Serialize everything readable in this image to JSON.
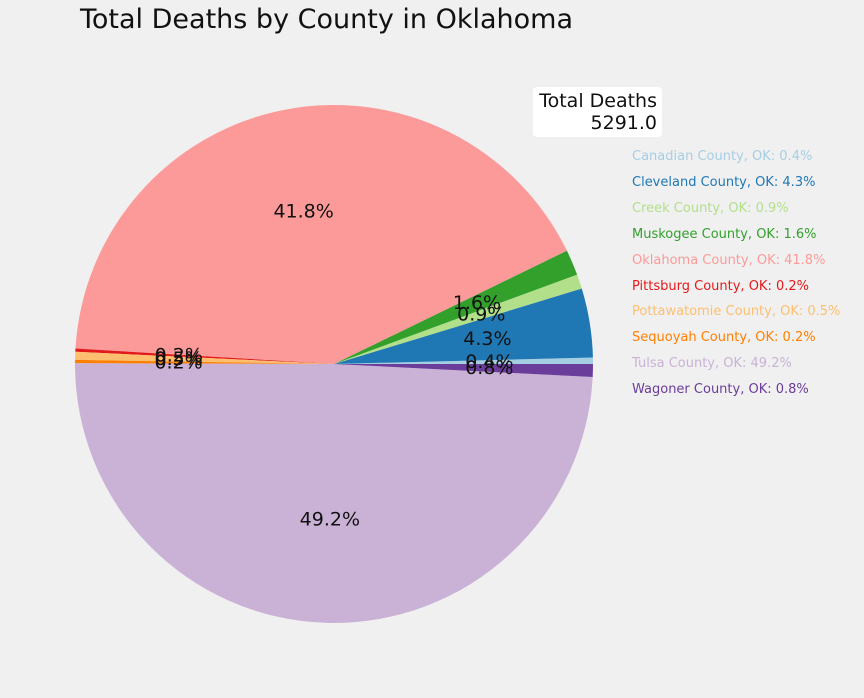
{
  "chart_data": {
    "type": "pie",
    "title": "Total Deaths by County in Oklahoma",
    "annotation": {
      "label": "Total Deaths",
      "value": "5291.0"
    },
    "start_angle_deg": 0,
    "direction": "counterclockwise",
    "slices": [
      {
        "label": "Canadian County, OK",
        "pct_text": "0.4%",
        "value": 0.4,
        "color": "#a6cee3"
      },
      {
        "label": "Cleveland County, OK",
        "pct_text": "4.3%",
        "value": 4.3,
        "color": "#1f78b4"
      },
      {
        "label": "Creek County, OK",
        "pct_text": "0.9%",
        "value": 0.9,
        "color": "#b2df8a"
      },
      {
        "label": "Muskogee County, OK",
        "pct_text": "1.6%",
        "value": 1.6,
        "color": "#33a02c"
      },
      {
        "label": "Oklahoma County, OK",
        "pct_text": "41.8%",
        "value": 41.8,
        "color": "#fb9a99"
      },
      {
        "label": "Pittsburg County, OK",
        "pct_text": "0.2%",
        "value": 0.2,
        "color": "#e31a1c"
      },
      {
        "label": "Pottawatomie County, OK",
        "pct_text": "0.5%",
        "value": 0.5,
        "color": "#fdbf6f"
      },
      {
        "label": "Sequoyah County, OK",
        "pct_text": "0.2%",
        "value": 0.2,
        "color": "#ff7f00"
      },
      {
        "label": "Tulsa County, OK",
        "pct_text": "49.2%",
        "value": 49.2,
        "color": "#cab2d6"
      },
      {
        "label": "Wagoner County, OK",
        "pct_text": "0.8%",
        "value": 0.8,
        "color": "#6a3d9a"
      }
    ]
  }
}
